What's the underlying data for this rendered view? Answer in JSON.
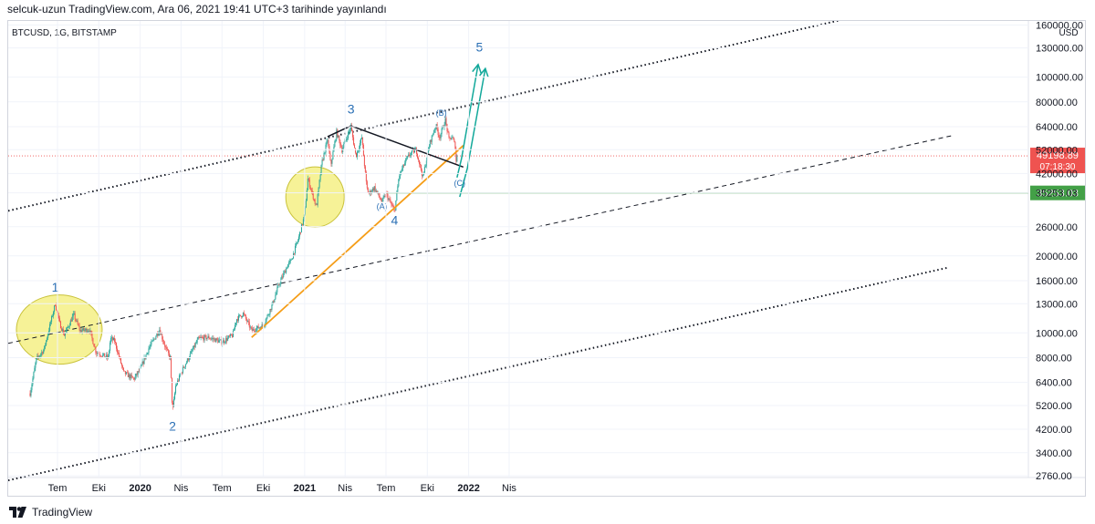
{
  "header": {
    "publish_line": "selcuk-uzun TradingView.com, Ara 06, 2021 19:41 UTC+3 tarihinde yayınlandı"
  },
  "footer": {
    "brand": "TradingView"
  },
  "colors": {
    "up": "#26a69a",
    "down": "#ef5350",
    "trend": "#f59d17",
    "wedge": "#131722",
    "support": "#43a047",
    "wave": "#2a6fb5",
    "arrow": "#12a89a",
    "highlight": "#f3ee74",
    "price_badge": "#ef5350",
    "support_badge": "#43a047"
  },
  "chart_data": {
    "type": "candlestick",
    "symbol_line": "BTCUSD, 1G, BITSTAMP",
    "y_axis": {
      "unit": "USD",
      "scale": "log",
      "ticks": [
        "160000.00",
        "130000.00",
        "100000.00",
        "80000.00",
        "64000.00",
        "52000.00",
        "42000.00",
        "35253.03",
        "26000.00",
        "20000.00",
        "16000.00",
        "13000.00",
        "10000.00",
        "8000.00",
        "6400.00",
        "5200.00",
        "4200.00",
        "3400.00",
        "2760.00"
      ]
    },
    "x_axis": {
      "ticks": [
        "Tem",
        "Eki",
        "2020",
        "Nis",
        "Tem",
        "Eki",
        "2021",
        "Nis",
        "Tem",
        "Eki",
        "2022",
        "Nis"
      ],
      "bold_ticks": [
        "2020",
        "2021",
        "2022"
      ]
    },
    "price_path": [
      [
        "2019-05-01",
        5800
      ],
      [
        "2019-05-15",
        7900
      ],
      [
        "2019-06-01",
        8600
      ],
      [
        "2019-06-26",
        13000
      ],
      [
        "2019-07-05",
        11000
      ],
      [
        "2019-07-16",
        9800
      ],
      [
        "2019-08-06",
        11800
      ],
      [
        "2019-08-20",
        10200
      ],
      [
        "2019-09-10",
        10300
      ],
      [
        "2019-09-25",
        8400
      ],
      [
        "2019-10-22",
        8000
      ],
      [
        "2019-10-27",
        9500
      ],
      [
        "2019-11-05",
        9300
      ],
      [
        "2019-11-25",
        7000
      ],
      [
        "2019-12-18",
        6600
      ],
      [
        "2020-01-01",
        7200
      ],
      [
        "2020-01-20",
        8700
      ],
      [
        "2020-02-13",
        10300
      ],
      [
        "2020-02-28",
        8600
      ],
      [
        "2020-03-08",
        8000
      ],
      [
        "2020-03-13",
        4900
      ],
      [
        "2020-03-20",
        6200
      ],
      [
        "2020-04-06",
        7300
      ],
      [
        "2020-04-30",
        8800
      ],
      [
        "2020-05-10",
        9500
      ],
      [
        "2020-06-01",
        9600
      ],
      [
        "2020-07-01",
        9200
      ],
      [
        "2020-07-25",
        9800
      ],
      [
        "2020-08-02",
        11300
      ],
      [
        "2020-08-17",
        11900
      ],
      [
        "2020-09-05",
        10200
      ],
      [
        "2020-10-01",
        10700
      ],
      [
        "2020-10-21",
        12900
      ],
      [
        "2020-11-05",
        15500
      ],
      [
        "2020-11-25",
        18500
      ],
      [
        "2020-12-01",
        19000
      ],
      [
        "2020-12-17",
        23000
      ],
      [
        "2021-01-01",
        29000
      ],
      [
        "2021-01-08",
        40000
      ],
      [
        "2021-01-27",
        31000
      ],
      [
        "2021-02-08",
        46000
      ],
      [
        "2021-02-21",
        57000
      ],
      [
        "2021-02-28",
        45000
      ],
      [
        "2021-03-13",
        61000
      ],
      [
        "2021-03-25",
        52000
      ],
      [
        "2021-04-14",
        64000
      ],
      [
        "2021-04-25",
        49000
      ],
      [
        "2021-05-08",
        58000
      ],
      [
        "2021-05-19",
        37000
      ],
      [
        "2021-05-23",
        35000
      ],
      [
        "2021-06-05",
        37000
      ],
      [
        "2021-06-22",
        32500
      ],
      [
        "2021-07-01",
        35000
      ],
      [
        "2021-07-20",
        29800
      ],
      [
        "2021-07-30",
        41000
      ],
      [
        "2021-08-14",
        47000
      ],
      [
        "2021-08-23",
        50000
      ],
      [
        "2021-09-06",
        52000
      ],
      [
        "2021-09-21",
        40500
      ],
      [
        "2021-10-06",
        55000
      ],
      [
        "2021-10-20",
        65000
      ],
      [
        "2021-10-28",
        58000
      ],
      [
        "2021-11-10",
        68000
      ],
      [
        "2021-11-18",
        57000
      ],
      [
        "2021-11-25",
        58500
      ],
      [
        "2021-12-03",
        53000
      ],
      [
        "2021-12-04",
        47000
      ],
      [
        "2021-12-06",
        49198.89
      ]
    ],
    "annotations": {
      "wave_labels": [
        {
          "text": "1",
          "date": "2019-06-26",
          "price": 14500
        },
        {
          "text": "2",
          "date": "2020-03-13",
          "price": 4150
        },
        {
          "text": "3",
          "date": "2021-04-14",
          "price": 72000
        },
        {
          "text": "4",
          "date": "2021-07-20",
          "price": 26500
        },
        {
          "text": "5",
          "date": "2022-01-25",
          "price": 126000
        },
        {
          "text": "(A)",
          "date": "2021-06-22",
          "price": 30500
        },
        {
          "text": "(B)",
          "date": "2021-11-01",
          "price": 70500
        },
        {
          "text": "(C)",
          "date": "2021-12-12",
          "price": 37500
        }
      ],
      "price_badge": {
        "value": "49198.89",
        "countdown": "07:18:30"
      },
      "support_badge": {
        "value": "35253.03"
      }
    }
  }
}
